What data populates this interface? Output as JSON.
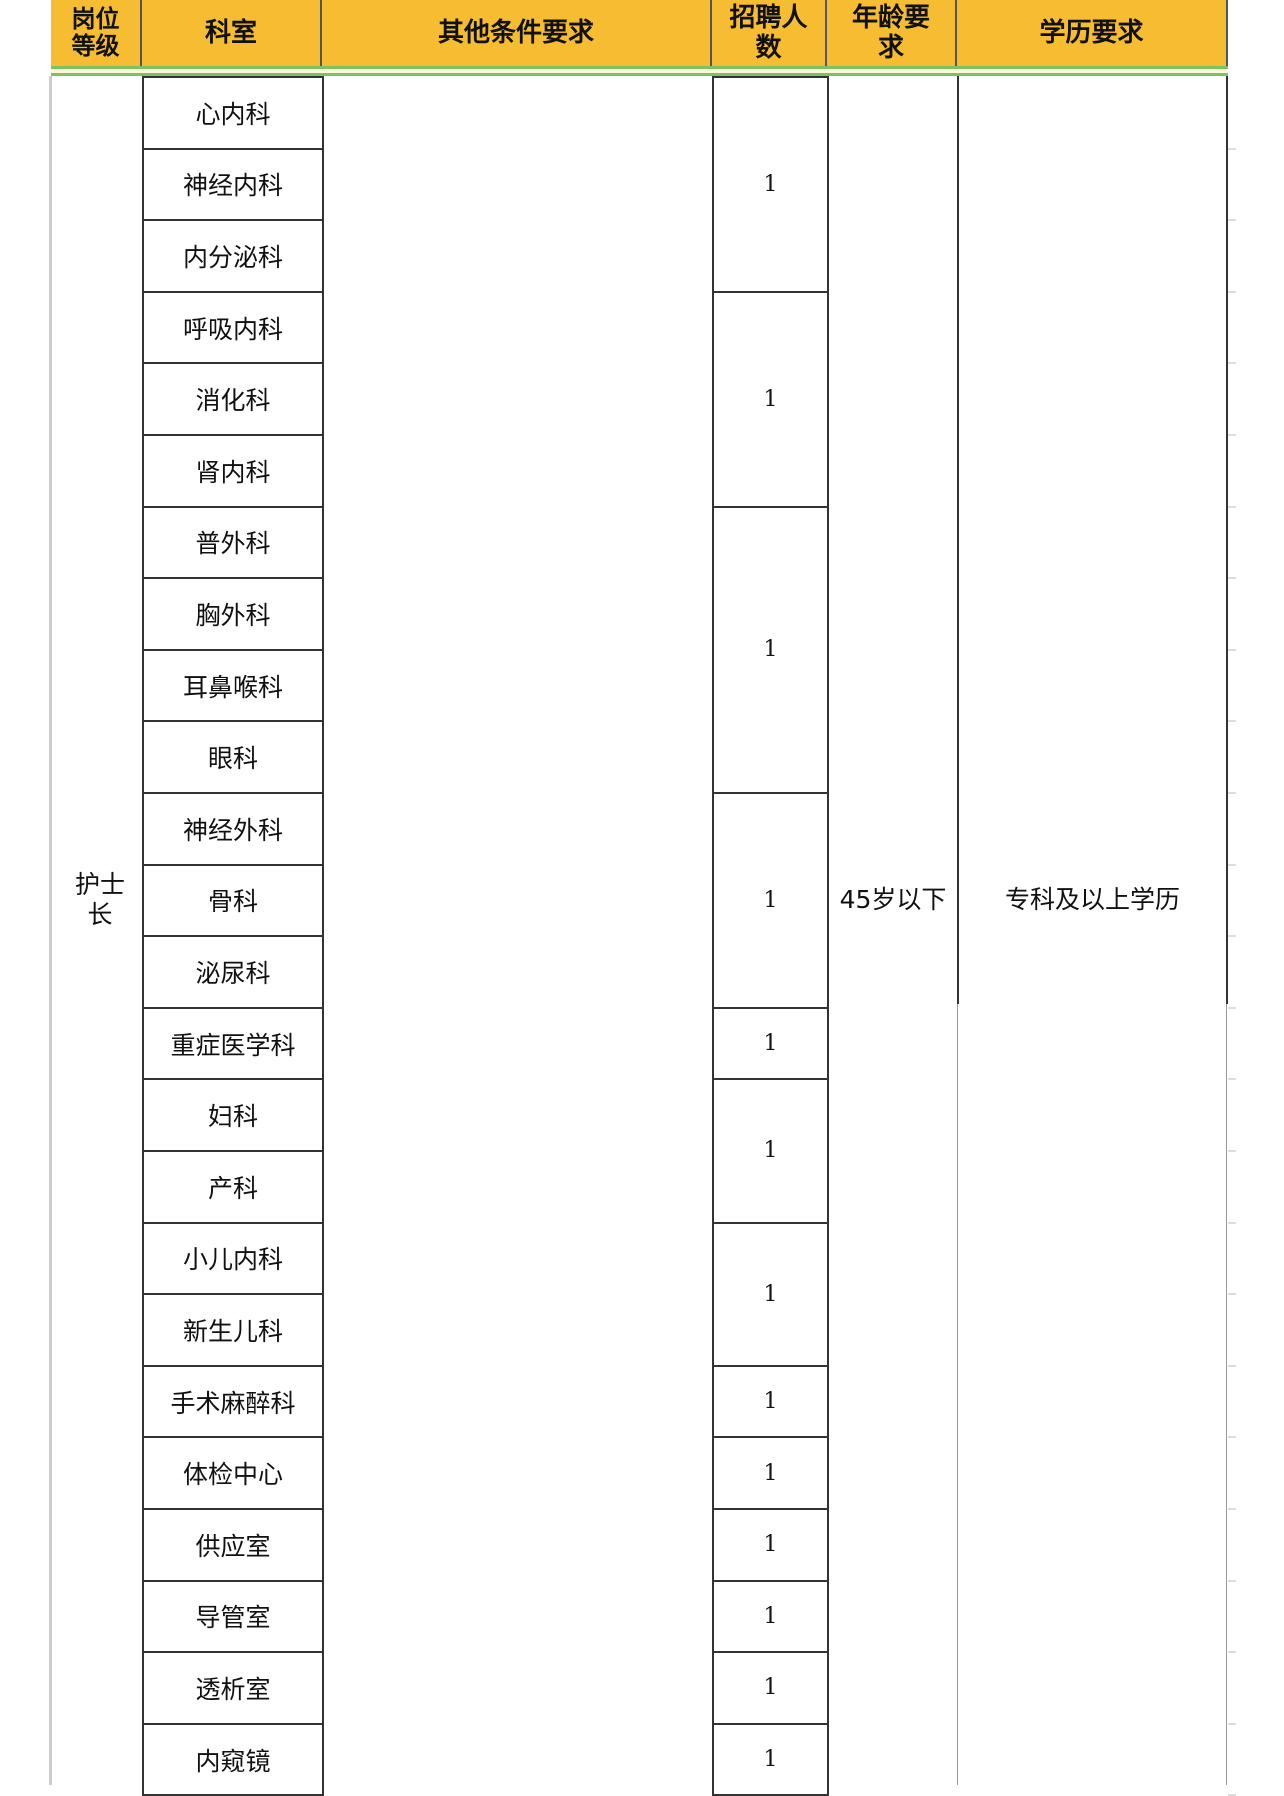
{
  "header": {
    "level": "岗位等级",
    "dept": "科室",
    "other": "其他条件要求",
    "count": "招聘人数",
    "age": "年龄要求",
    "edu": "学历要求"
  },
  "position": "护士长",
  "age": "45岁以下",
  "edu": "专科及以上学历",
  "departments": [
    "心内科",
    "神经内科",
    "内分泌科",
    "呼吸内科",
    "消化科",
    "肾内科",
    "普外科",
    "胸外科",
    "耳鼻喉科",
    "眼科",
    "神经外科",
    "骨科",
    "泌尿科",
    "重症医学科",
    "妇科",
    "产科",
    "小儿内科",
    "新生儿科",
    "手术麻醉科",
    "体检中心",
    "供应室",
    "导管室",
    "透析室",
    "内窥镜"
  ],
  "count_groups": [
    {
      "rows": 3,
      "value": "1"
    },
    {
      "rows": 3,
      "value": "1"
    },
    {
      "rows": 4,
      "value": "1"
    },
    {
      "rows": 3,
      "value": "1"
    },
    {
      "rows": 1,
      "value": "1"
    },
    {
      "rows": 2,
      "value": "1"
    },
    {
      "rows": 2,
      "value": "1"
    },
    {
      "rows": 1,
      "value": "1"
    },
    {
      "rows": 1,
      "value": "1"
    },
    {
      "rows": 1,
      "value": "1"
    },
    {
      "rows": 1,
      "value": "1"
    },
    {
      "rows": 1,
      "value": "1"
    },
    {
      "rows": 1,
      "value": "1"
    }
  ],
  "colors": {
    "header_bg": "#f7bd32",
    "freeze_line": "#7cc265"
  }
}
